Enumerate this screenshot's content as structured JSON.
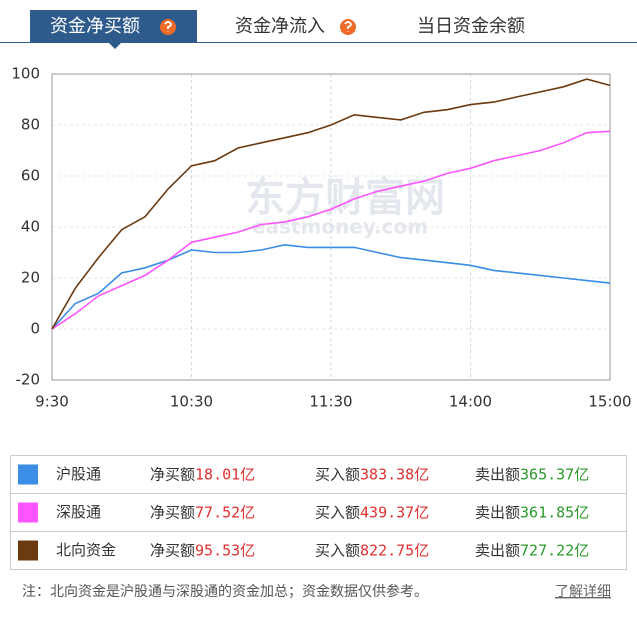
{
  "tabs": [
    "资金净买额",
    "资金净流入",
    "当日资金余额"
  ],
  "chart_data": {
    "type": "line",
    "x": [
      "9:30",
      null,
      null,
      null,
      null,
      null,
      "10:30",
      null,
      null,
      null,
      null,
      null,
      "11:30",
      null,
      null,
      null,
      null,
      null,
      "14:00",
      null,
      null,
      null,
      null,
      null,
      "15:00"
    ],
    "ylim": [
      -20,
      100
    ],
    "yticks": [
      -20,
      0,
      20,
      40,
      60,
      80,
      100
    ],
    "grid": true,
    "watermark": "东方财富网",
    "watermark_sub": "eastmoney.com",
    "series": [
      {
        "name": "沪股通",
        "color": "#3a8ee6",
        "values": [
          0,
          10,
          14,
          22,
          24,
          27,
          31,
          30,
          30,
          31,
          33,
          32,
          32,
          32,
          30,
          28,
          27,
          26,
          25,
          23,
          22,
          21,
          20,
          19,
          18.01
        ]
      },
      {
        "name": "深股通",
        "color": "#ff55ff",
        "values": [
          0,
          6,
          13,
          17,
          21,
          27,
          34,
          36,
          38,
          41,
          42,
          44,
          47,
          51,
          54,
          56,
          58,
          61,
          63,
          66,
          68,
          70,
          73,
          77,
          77.52
        ]
      },
      {
        "name": "北向资金",
        "color": "#6b3a10",
        "values": [
          0,
          16,
          28,
          39,
          44,
          55,
          64,
          66,
          71,
          73,
          75,
          77,
          80,
          84,
          83,
          82,
          85,
          86,
          88,
          89,
          91,
          93,
          95,
          98,
          95.53
        ]
      }
    ]
  },
  "table": {
    "labels": [
      "净买额",
      "买入额",
      "卖出额"
    ],
    "rows": [
      [
        "18.01亿",
        "383.38亿",
        "365.37亿"
      ],
      [
        "77.52亿",
        "439.37亿",
        "361.85亿"
      ],
      [
        "95.53亿",
        "822.75亿",
        "727.22亿"
      ]
    ]
  },
  "note": "注：北向资金是沪股通与深股通的资金加总；资金数据仅供参考。",
  "link": "了解详细"
}
